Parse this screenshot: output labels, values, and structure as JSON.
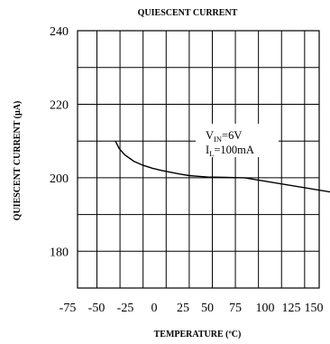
{
  "chart_data": {
    "type": "line",
    "title": "QUIESCENT CURRENT",
    "xlabel": "TEMPERATURE (ºC)",
    "ylabel": "QUIESCENT CURRENT (µA)",
    "xlim": [
      -75,
      150
    ],
    "ylim": [
      170,
      240
    ],
    "x_ticks": [
      -75,
      -50,
      -25,
      0,
      25,
      50,
      75,
      100,
      125,
      150
    ],
    "x_tick_labels": [
      "-75",
      "-50",
      "-25",
      "0",
      "25",
      "50",
      "75",
      "100",
      "125",
      "150"
    ],
    "y_ticks": [
      180,
      200,
      220,
      240
    ],
    "y_tick_labels": [
      "180",
      "200",
      "220",
      "240"
    ],
    "grid": true,
    "series": [
      {
        "x": [
          -40,
          -38,
          -35,
          -30,
          -25,
          -20,
          -15,
          -10,
          -5,
          0,
          5,
          10,
          20,
          30,
          150
        ],
        "y": [
          210,
          208.0,
          206.3,
          204.5,
          203.4,
          202.6,
          202.0,
          201.5,
          201.0,
          200.6,
          200.4,
          200.2,
          200.1,
          200,
          190
        ]
      }
    ],
    "annotation": {
      "line1": {
        "main": "V",
        "sub": "IN",
        "rest": "=6V"
      },
      "line2": {
        "main": "I",
        "sub": "L",
        "rest": "=100mA"
      }
    }
  }
}
